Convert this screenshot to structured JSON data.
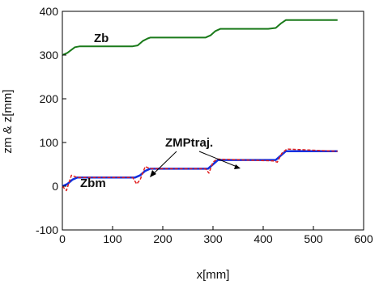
{
  "chart_data": {
    "type": "line",
    "xlabel": "x[mm]",
    "ylabel": "zm & z[mm]",
    "xlim": [
      0,
      600
    ],
    "ylim": [
      -100,
      400
    ],
    "xticks": [
      0,
      100,
      200,
      300,
      400,
      500,
      600
    ],
    "yticks": [
      -100,
      0,
      100,
      200,
      300,
      400
    ],
    "grid": false,
    "series": [
      {
        "name": "Zb",
        "color": "#1a7a1a",
        "x": [
          0,
          10,
          25,
          35,
          140,
          150,
          160,
          170,
          175,
          285,
          295,
          305,
          315,
          410,
          425,
          435,
          445,
          548
        ],
        "y": [
          300,
          305,
          318,
          320,
          320,
          322,
          332,
          338,
          340,
          340,
          345,
          355,
          360,
          360,
          362,
          372,
          380,
          380
        ]
      },
      {
        "name": "Zbm",
        "color": "#1030e0",
        "x": [
          0,
          10,
          20,
          30,
          145,
          155,
          165,
          175,
          290,
          300,
          310,
          425,
          435,
          445,
          548
        ],
        "y": [
          0,
          5,
          15,
          20,
          20,
          25,
          35,
          40,
          40,
          50,
          60,
          60,
          70,
          80,
          80
        ]
      },
      {
        "name": "ZMP traj.",
        "color": "#e02020",
        "x": [
          0,
          8,
          18,
          25,
          30,
          140,
          148,
          155,
          165,
          175,
          285,
          292,
          300,
          308,
          420,
          428,
          437,
          447,
          548
        ],
        "y": [
          0,
          -10,
          25,
          22,
          20,
          20,
          5,
          15,
          45,
          40,
          40,
          30,
          55,
          62,
          58,
          55,
          75,
          85,
          80
        ]
      }
    ],
    "annotations": [
      "Zb",
      "Zbm",
      "ZMPtraj."
    ]
  },
  "colors": {
    "axis": "#000000",
    "background": "#ffffff"
  }
}
